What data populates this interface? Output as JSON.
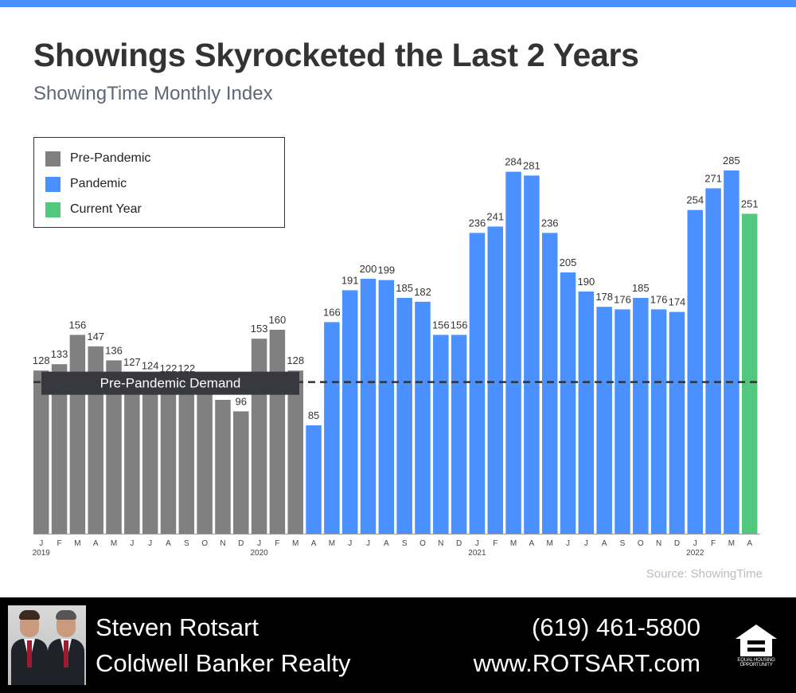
{
  "header": {
    "title": "Showings Skyrocketed the Last 2 Years",
    "subtitle": "ShowingTime Monthly Index",
    "accent_color": "#4a90ff"
  },
  "legend": {
    "items": [
      {
        "label": "Pre-Pandemic",
        "color": "#808080"
      },
      {
        "label": "Pandemic",
        "color": "#4a90ff"
      },
      {
        "label": "Current Year",
        "color": "#52c77e"
      }
    ]
  },
  "chart_data": {
    "type": "bar",
    "categories": [
      "J",
      "F",
      "M",
      "A",
      "M",
      "J",
      "J",
      "A",
      "S",
      "O",
      "N",
      "D",
      "J",
      "F",
      "M",
      "A",
      "M",
      "J",
      "J",
      "A",
      "S",
      "O",
      "N",
      "D",
      "J",
      "F",
      "M",
      "A",
      "M",
      "J",
      "J",
      "A",
      "S",
      "O",
      "N",
      "D",
      "J",
      "F",
      "M",
      "A"
    ],
    "values": [
      128,
      133,
      156,
      147,
      136,
      127,
      124,
      122,
      122,
      null,
      null,
      96,
      153,
      160,
      128,
      85,
      166,
      191,
      200,
      199,
      185,
      182,
      156,
      156,
      236,
      241,
      284,
      281,
      236,
      205,
      190,
      178,
      176,
      185,
      176,
      174,
      254,
      271,
      285,
      251
    ],
    "groups": [
      "Pre-Pandemic",
      "Pre-Pandemic",
      "Pre-Pandemic",
      "Pre-Pandemic",
      "Pre-Pandemic",
      "Pre-Pandemic",
      "Pre-Pandemic",
      "Pre-Pandemic",
      "Pre-Pandemic",
      "Pre-Pandemic",
      "Pre-Pandemic",
      "Pre-Pandemic",
      "Pre-Pandemic",
      "Pre-Pandemic",
      "Pre-Pandemic",
      "Pandemic",
      "Pandemic",
      "Pandemic",
      "Pandemic",
      "Pandemic",
      "Pandemic",
      "Pandemic",
      "Pandemic",
      "Pandemic",
      "Pandemic",
      "Pandemic",
      "Pandemic",
      "Pandemic",
      "Pandemic",
      "Pandemic",
      "Pandemic",
      "Pandemic",
      "Pandemic",
      "Pandemic",
      "Pandemic",
      "Pandemic",
      "Pandemic",
      "Pandemic",
      "Pandemic",
      "Current Year"
    ],
    "unlabeled_values": [
      {
        "index": 9,
        "value": 118
      },
      {
        "index": 10,
        "value": 105
      }
    ],
    "year_labels": [
      {
        "index": 0,
        "label": "2019"
      },
      {
        "index": 12,
        "label": "2020"
      },
      {
        "index": 24,
        "label": "2021"
      },
      {
        "index": 36,
        "label": "2022"
      }
    ],
    "reference_line": {
      "value": 119,
      "label": "Pre-Pandemic Demand"
    },
    "ylim": [
      0,
      300
    ],
    "grid": false,
    "legend_position": "top-left"
  },
  "source": "Source: ShowingTime",
  "footer": {
    "agent_name": "Steven Rotsart",
    "company": "Coldwell Banker Realty",
    "phone": "(619) 461-5800",
    "website": "www.ROTSART.com",
    "badge_text": "EQUAL HOUSING OPPORTUNITY",
    "badge_icon": "equal-housing-icon"
  }
}
